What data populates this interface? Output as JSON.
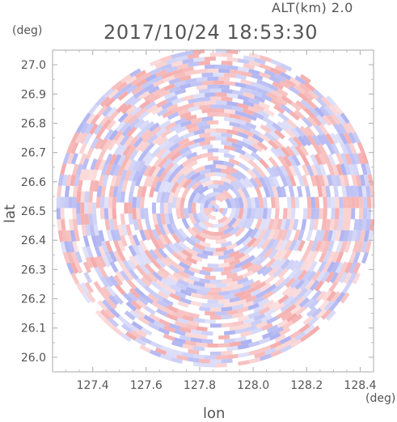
{
  "header": {
    "altitude_label": "ALT(km) 2.0",
    "timestamp": "2017/10/24 18:53:30"
  },
  "chart_data": {
    "type": "heatmap",
    "subtype": "polar radar PPI",
    "title": "2017/10/24 18:53:30",
    "subtitle": "ALT(km) 2.0",
    "xlabel": "lon",
    "ylabel": "lat",
    "xunit": "(deg)",
    "yunit": "(deg)",
    "xlim": [
      127.25,
      128.45
    ],
    "ylim": [
      25.95,
      27.05
    ],
    "xticks": [
      "127.4",
      "127.6",
      "127.8",
      "128.0",
      "128.2",
      "128.4"
    ],
    "yticks": [
      "26.0",
      "26.1",
      "26.2",
      "26.3",
      "26.4",
      "26.5",
      "26.6",
      "26.7",
      "26.8",
      "26.9",
      "27.0"
    ],
    "center": {
      "lon": 127.86,
      "lat": 26.51
    },
    "colors": {
      "positive": "#f4a6a6",
      "negative": "#a9aef0",
      "neutral": "#ffffff",
      "axis": "#aaaaaa"
    }
  }
}
